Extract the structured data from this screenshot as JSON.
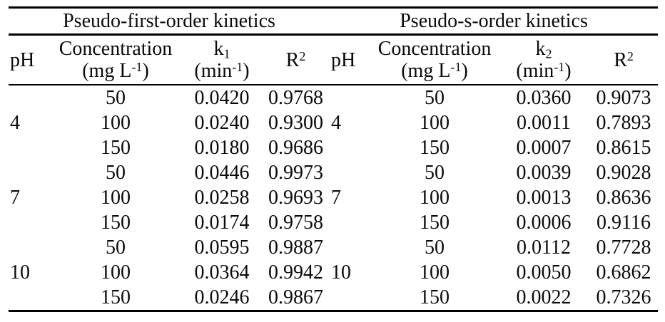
{
  "table": {
    "sections": [
      {
        "title": "Pseudo-first-order kinetics"
      },
      {
        "title": "Pseudo-s-order kinetics"
      }
    ],
    "headers": {
      "ph": "pH",
      "concentration": "Concentration",
      "conc_unit_open": "(mg L",
      "sup_minus1": "-1",
      "paren_close": ")",
      "k_base": "k",
      "k1_sub": "1",
      "k2_sub": "2",
      "k_unit_open": "(min",
      "r_base": "R",
      "r_sup": "2"
    },
    "groups": [
      {
        "ph": "4"
      },
      {
        "ph": "7"
      },
      {
        "ph": "10"
      }
    ],
    "rows": [
      {
        "l_conc": "50",
        "l_k": "0.0420",
        "l_r2": "0.9768",
        "r_conc": "50",
        "r_k": "0.0360",
        "r_r2": "0.9073"
      },
      {
        "l_conc": "100",
        "l_k": "0.0240",
        "l_r2": "0.9300",
        "r_conc": "100",
        "r_k": "0.0011",
        "r_r2": "0.7893"
      },
      {
        "l_conc": "150",
        "l_k": "0.0180",
        "l_r2": "0.9686",
        "r_conc": "150",
        "r_k": "0.0007",
        "r_r2": "0.8615"
      },
      {
        "l_conc": "50",
        "l_k": "0.0446",
        "l_r2": "0.9973",
        "r_conc": "50",
        "r_k": "0.0039",
        "r_r2": "0.9028"
      },
      {
        "l_conc": "100",
        "l_k": "0.0258",
        "l_r2": "0.9693",
        "r_conc": "100",
        "r_k": "0.0013",
        "r_r2": "0.8636"
      },
      {
        "l_conc": "150",
        "l_k": "0.0174",
        "l_r2": "0.9758",
        "r_conc": "150",
        "r_k": "0.0006",
        "r_r2": "0.9116"
      },
      {
        "l_conc": "50",
        "l_k": "0.0595",
        "l_r2": "0.9887",
        "r_conc": "50",
        "r_k": "0.0112",
        "r_r2": "0.7728"
      },
      {
        "l_conc": "100",
        "l_k": "0.0364",
        "l_r2": "0.9942",
        "r_conc": "100",
        "r_k": "0.0050",
        "r_r2": "0.6862"
      },
      {
        "l_conc": "150",
        "l_k": "0.0246",
        "l_r2": "0.9867",
        "r_conc": "150",
        "r_k": "0.0022",
        "r_r2": "0.7326"
      }
    ],
    "text_color": "#0a0a0a",
    "rule_color": "#000000"
  }
}
